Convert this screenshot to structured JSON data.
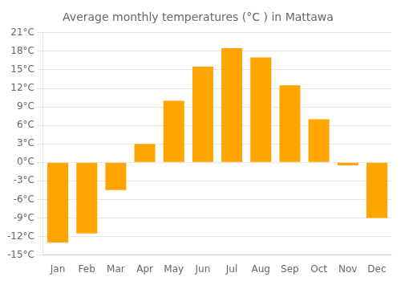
{
  "chart_data": {
    "type": "bar",
    "title": "Average monthly temperatures (°C ) in Mattawa",
    "categories": [
      "Jan",
      "Feb",
      "Mar",
      "Apr",
      "May",
      "Jun",
      "Jul",
      "Aug",
      "Sep",
      "Oct",
      "Nov",
      "Dec"
    ],
    "values": [
      -13.0,
      -11.5,
      -4.5,
      3.0,
      10.0,
      15.5,
      18.5,
      17.0,
      12.5,
      7.0,
      -0.5,
      -9.0
    ],
    "color": "#FFA500",
    "ylim": [
      -15,
      21
    ],
    "yticks": [
      {
        "value": -15,
        "label": "-15°C"
      },
      {
        "value": -12,
        "label": "-12°C"
      },
      {
        "value": -9,
        "label": "-9°C"
      },
      {
        "value": -6,
        "label": "-6°C"
      },
      {
        "value": -3,
        "label": "-3°C"
      },
      {
        "value": 0,
        "label": "0°C"
      },
      {
        "value": 3,
        "label": "3°C"
      },
      {
        "value": 6,
        "label": "6°C"
      },
      {
        "value": 9,
        "label": "9°C"
      },
      {
        "value": 12,
        "label": "12°C"
      },
      {
        "value": 15,
        "label": "15°C"
      },
      {
        "value": 18,
        "label": "18°C"
      },
      {
        "value": 21,
        "label": "21°C"
      }
    ],
    "grid": true
  }
}
